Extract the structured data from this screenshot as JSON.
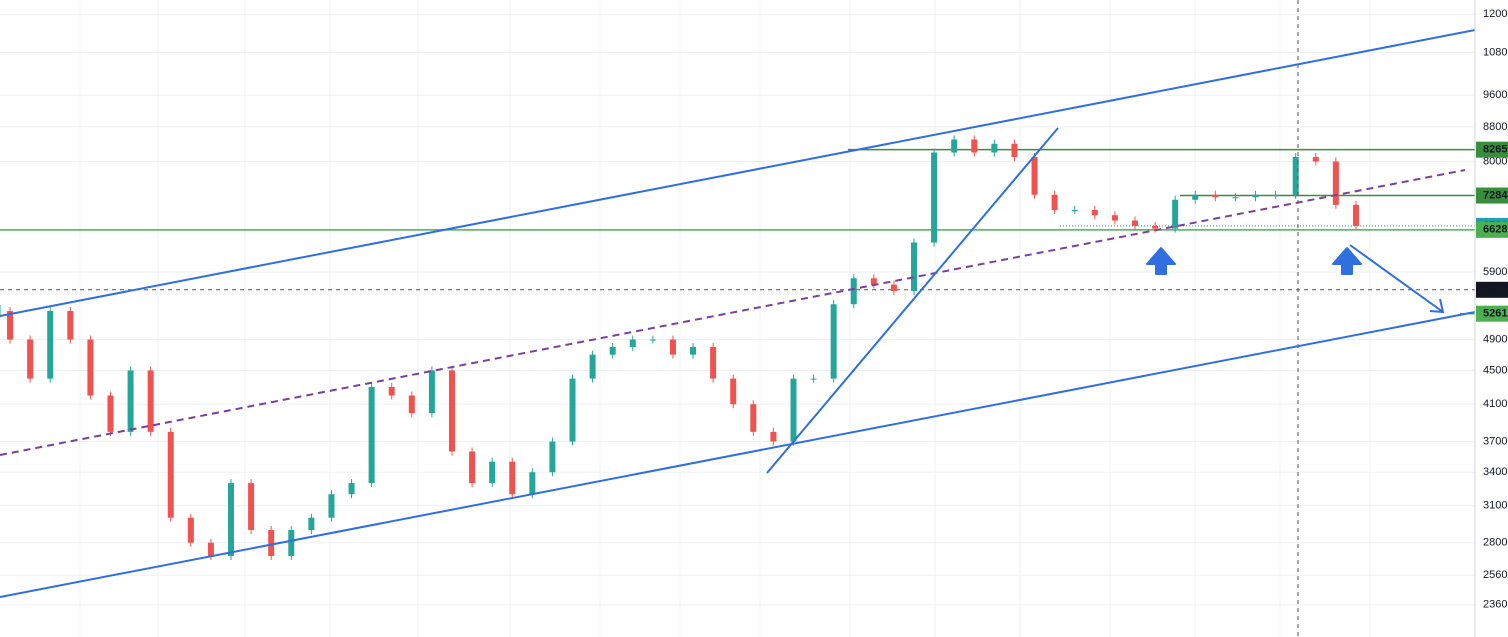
{
  "chart_data": {
    "type": "candlestick",
    "values": [
      5300,
      4900,
      4400,
      5300,
      4900,
      4200,
      3800,
      4500,
      3800,
      3000,
      2800,
      2700,
      3300,
      2900,
      2700,
      2900,
      3000,
      3200,
      3300,
      4300,
      4200,
      4000,
      4500,
      3600,
      3300,
      3500,
      3200,
      3400,
      3700,
      4400,
      4700,
      4800,
      4900,
      4900,
      4700,
      4800,
      4400,
      4100,
      3800,
      3700,
      4400,
      4400,
      5400,
      5800,
      5700,
      5600,
      6400,
      8200,
      8500,
      8200,
      8400,
      8100,
      7300,
      7000,
      7000,
      6900,
      6800,
      6700,
      6650,
      7200,
      7300,
      7250,
      7250,
      7300,
      7300,
      8100,
      8000,
      7100,
      6700
    ],
    "up_color": "#26a69a",
    "down_color": "#ef5350",
    "log_scale": true,
    "ylim": [
      2160,
      12480
    ],
    "yticks": [
      2360,
      2560,
      2800,
      {
        "value": 3100,
        "label": "3100."
      },
      3400,
      3700,
      {
        "value": 4100,
        "label": "4100."
      },
      4500,
      4900,
      5900,
      8000,
      8800,
      9600,
      10800,
      12000
    ],
    "grid": true,
    "levels": [
      {
        "value": 8265,
        "label": "8265",
        "color": "#388e3c"
      },
      {
        "value": 7284,
        "label": "7284",
        "color": "#388e3c"
      },
      {
        "value": 6700,
        "label": "6700",
        "color": "#22a0b0"
      },
      {
        "value": 6628,
        "label": "6628",
        "color": "#4caf50"
      },
      {
        "value": 5619,
        "label": "5619",
        "color": "#131722"
      },
      {
        "value": 5261,
        "label": "5261",
        "color": "#4caf50"
      }
    ]
  }
}
